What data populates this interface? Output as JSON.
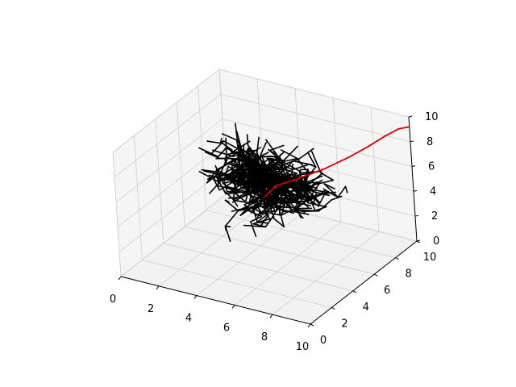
{
  "chart_data": {
    "type": "line",
    "projection": "3d",
    "title": "",
    "xlabel": "",
    "ylabel": "",
    "zlabel": "",
    "xlim": [
      0,
      10
    ],
    "ylim": [
      0,
      10
    ],
    "zlim": [
      0,
      10
    ],
    "xticks": [
      "0",
      "2",
      "4",
      "6",
      "8",
      "10"
    ],
    "yticks": [
      "0",
      "2",
      "4",
      "6",
      "8",
      "10"
    ],
    "zticks": [
      "0",
      "2",
      "4",
      "6",
      "8",
      "10"
    ],
    "grid": true,
    "series": [
      {
        "kind": "tree",
        "color": "#000000",
        "root": [
          5,
          5,
          5
        ],
        "branch_count": 900,
        "max_branch_length": 0.9
      },
      {
        "kind": "path",
        "color": "#d40000",
        "points": [
          [
            5,
            5,
            5
          ],
          [
            5.3,
            5.6,
            5.6
          ],
          [
            6.0,
            6.4,
            5.9
          ],
          [
            6.8,
            7.4,
            6.3
          ],
          [
            7.6,
            8.4,
            6.9
          ],
          [
            8.3,
            9.1,
            7.6
          ],
          [
            8.9,
            9.6,
            8.3
          ],
          [
            9.4,
            10.0,
            8.8
          ],
          [
            10,
            10,
            9.2
          ]
        ]
      }
    ]
  }
}
